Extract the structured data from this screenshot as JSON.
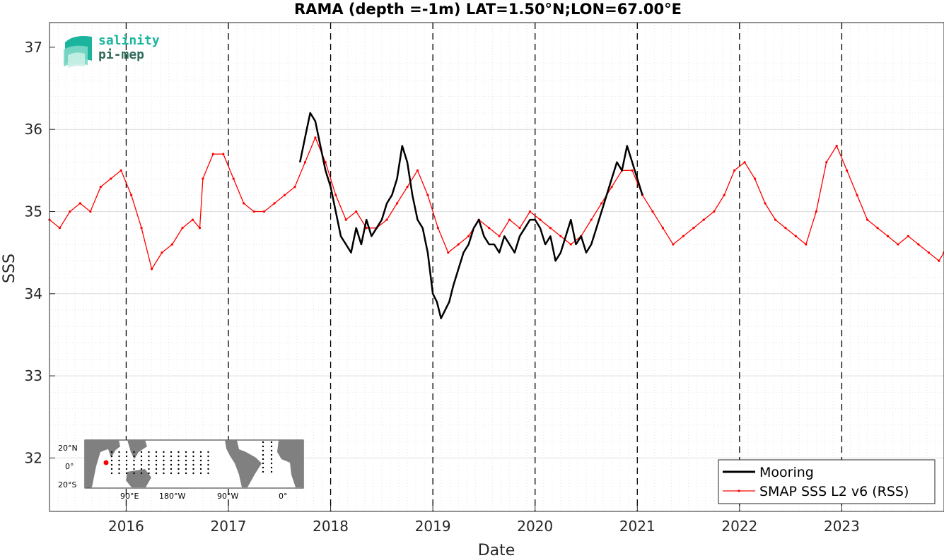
{
  "chart_data": {
    "type": "line",
    "title": "RAMA (depth =-1m) LAT=1.50°N;LON=67.00°E",
    "xlabel": "Date",
    "ylabel": "SSS",
    "xlim": [
      2015.25,
      2024.0
    ],
    "ylim": [
      31.35,
      37.3
    ],
    "x_ticks": [
      "2016",
      "2017",
      "2018",
      "2019",
      "2020",
      "2021",
      "2022",
      "2023"
    ],
    "y_ticks": [
      "32",
      "33",
      "34",
      "35",
      "36",
      "37"
    ],
    "year_lines": [
      2016,
      2017,
      2018,
      2019,
      2020,
      2021,
      2022,
      2023
    ],
    "grid": true,
    "legend_position": "bottom-right",
    "series": [
      {
        "name": "Mooring",
        "color": "#000000",
        "x": [
          2017.7,
          2017.75,
          2017.8,
          2017.85,
          2017.9,
          2017.95,
          2018.0,
          2018.05,
          2018.1,
          2018.15,
          2018.2,
          2018.25,
          2018.3,
          2018.35,
          2018.4,
          2018.45,
          2018.5,
          2018.55,
          2018.6,
          2018.65,
          2018.7,
          2018.75,
          2018.8,
          2018.85,
          2018.9,
          2018.95,
          2019.0,
          2019.04,
          2019.08,
          2019.12,
          2019.16,
          2019.2,
          2019.25,
          2019.3,
          2019.35,
          2019.4,
          2019.45,
          2019.5,
          2019.55,
          2019.6,
          2019.65,
          2019.7,
          2019.75,
          2019.8,
          2019.85,
          2019.9,
          2019.95,
          2020.0,
          2020.05,
          2020.1,
          2020.15,
          2020.2,
          2020.25,
          2020.3,
          2020.35,
          2020.4,
          2020.45,
          2020.5,
          2020.55,
          2020.6,
          2020.65,
          2020.7,
          2020.75,
          2020.8,
          2020.85,
          2020.9,
          2020.95,
          2021.0,
          2021.05
        ],
        "values": [
          35.6,
          35.9,
          36.2,
          36.1,
          35.8,
          35.5,
          35.3,
          35.0,
          34.7,
          34.6,
          34.5,
          34.8,
          34.6,
          34.9,
          34.7,
          34.8,
          34.9,
          35.1,
          35.2,
          35.4,
          35.8,
          35.6,
          35.2,
          34.9,
          34.8,
          34.5,
          34.0,
          33.9,
          33.7,
          33.8,
          33.9,
          34.1,
          34.3,
          34.5,
          34.6,
          34.8,
          34.9,
          34.7,
          34.6,
          34.6,
          34.5,
          34.7,
          34.6,
          34.5,
          34.7,
          34.8,
          34.9,
          34.9,
          34.8,
          34.6,
          34.7,
          34.4,
          34.5,
          34.7,
          34.9,
          34.6,
          34.7,
          34.5,
          34.6,
          34.8,
          35.0,
          35.2,
          35.4,
          35.6,
          35.5,
          35.8,
          35.6,
          35.4,
          35.2
        ]
      },
      {
        "name": "SMAP SSS L2 v6 (RSS)",
        "color": "#ff0000",
        "x": [
          2015.25,
          2015.35,
          2015.45,
          2015.55,
          2015.65,
          2015.75,
          2015.85,
          2015.95,
          2016.05,
          2016.15,
          2016.25,
          2016.35,
          2016.45,
          2016.55,
          2016.65,
          2016.72,
          2016.75,
          2016.85,
          2016.95,
          2017.05,
          2017.15,
          2017.25,
          2017.35,
          2017.45,
          2017.55,
          2017.65,
          2017.75,
          2017.85,
          2017.95,
          2018.05,
          2018.15,
          2018.25,
          2018.35,
          2018.45,
          2018.55,
          2018.65,
          2018.75,
          2018.85,
          2018.95,
          2019.05,
          2019.15,
          2019.25,
          2019.35,
          2019.45,
          2019.55,
          2019.65,
          2019.75,
          2019.85,
          2019.95,
          2020.05,
          2020.15,
          2020.25,
          2020.35,
          2020.45,
          2020.55,
          2020.65,
          2020.75,
          2020.85,
          2020.95,
          2021.05,
          2021.15,
          2021.25,
          2021.35,
          2021.45,
          2021.55,
          2021.65,
          2021.75,
          2021.85,
          2021.95,
          2022.05,
          2022.15,
          2022.25,
          2022.35,
          2022.45,
          2022.55,
          2022.65,
          2022.75,
          2022.85,
          2022.95,
          2023.05,
          2023.15,
          2023.25,
          2023.35,
          2023.45,
          2023.55,
          2023.65,
          2023.75,
          2023.85,
          2023.95,
          2024.0
        ],
        "values": [
          34.9,
          34.8,
          35.0,
          35.1,
          35.0,
          35.3,
          35.4,
          35.5,
          35.2,
          34.8,
          34.3,
          34.5,
          34.6,
          34.8,
          34.9,
          34.8,
          35.4,
          35.7,
          35.7,
          35.4,
          35.1,
          35.0,
          35.0,
          35.1,
          35.2,
          35.3,
          35.6,
          35.9,
          35.6,
          35.2,
          34.9,
          35.0,
          34.8,
          34.8,
          34.9,
          35.1,
          35.3,
          35.5,
          35.2,
          34.8,
          34.5,
          34.6,
          34.7,
          34.9,
          34.8,
          34.7,
          34.9,
          34.8,
          35.0,
          34.9,
          34.8,
          34.7,
          34.6,
          34.7,
          34.9,
          35.1,
          35.3,
          35.5,
          35.5,
          35.2,
          35.0,
          34.8,
          34.6,
          34.7,
          34.8,
          34.9,
          35.0,
          35.2,
          35.5,
          35.6,
          35.4,
          35.1,
          34.9,
          34.8,
          34.7,
          34.6,
          35.0,
          35.6,
          35.8,
          35.5,
          35.2,
          34.9,
          34.8,
          34.7,
          34.6,
          34.7,
          34.6,
          34.5,
          34.4,
          34.5
        ]
      }
    ]
  },
  "logo": {
    "line1": "salinity",
    "line2": "pi-mep",
    "color_primary": "#1bb59e",
    "color_secondary": "#2f6b5a"
  },
  "inset_map": {
    "lat_labels": [
      "20°N",
      "0°",
      "20°S"
    ],
    "lon_labels": [
      "90°E",
      "180°W",
      "90°W",
      "0°"
    ],
    "marker_color": "#ff0000"
  }
}
